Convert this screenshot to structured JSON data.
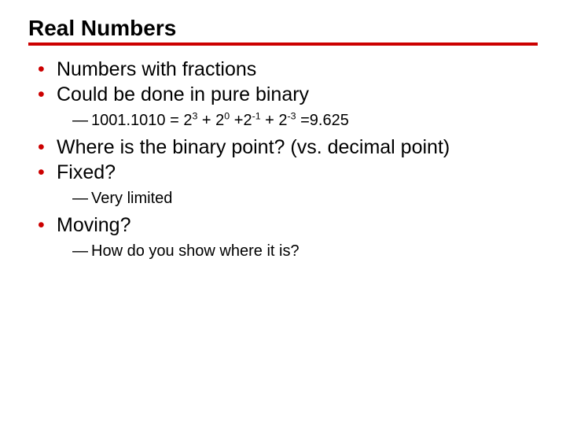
{
  "slide": {
    "title": "Real Numbers",
    "rule_color": "#cc0000",
    "bullet_color": "#cc0000",
    "title_fontsize": 28,
    "body_fontsize": 25,
    "sub_fontsize": 20,
    "bullets": [
      {
        "text": "Numbers with fractions"
      },
      {
        "text": "Could be done in pure binary",
        "sub": [
          {
            "formula": {
              "prefix": "1001.1010 = 2",
              "exp1": "3",
              "mid1": " + 2",
              "exp2": "0",
              "mid2": " +2",
              "exp3": "-1",
              "mid3": " + 2",
              "exp4": "-3",
              "suffix": " =9.625"
            }
          }
        ]
      },
      {
        "text": "Where is the binary point? (vs. decimal point)"
      },
      {
        "text": "Fixed?",
        "sub": [
          {
            "text": "Very limited"
          }
        ]
      },
      {
        "text": "Moving?",
        "sub": [
          {
            "text": "How do you show where it is?"
          }
        ]
      }
    ]
  }
}
